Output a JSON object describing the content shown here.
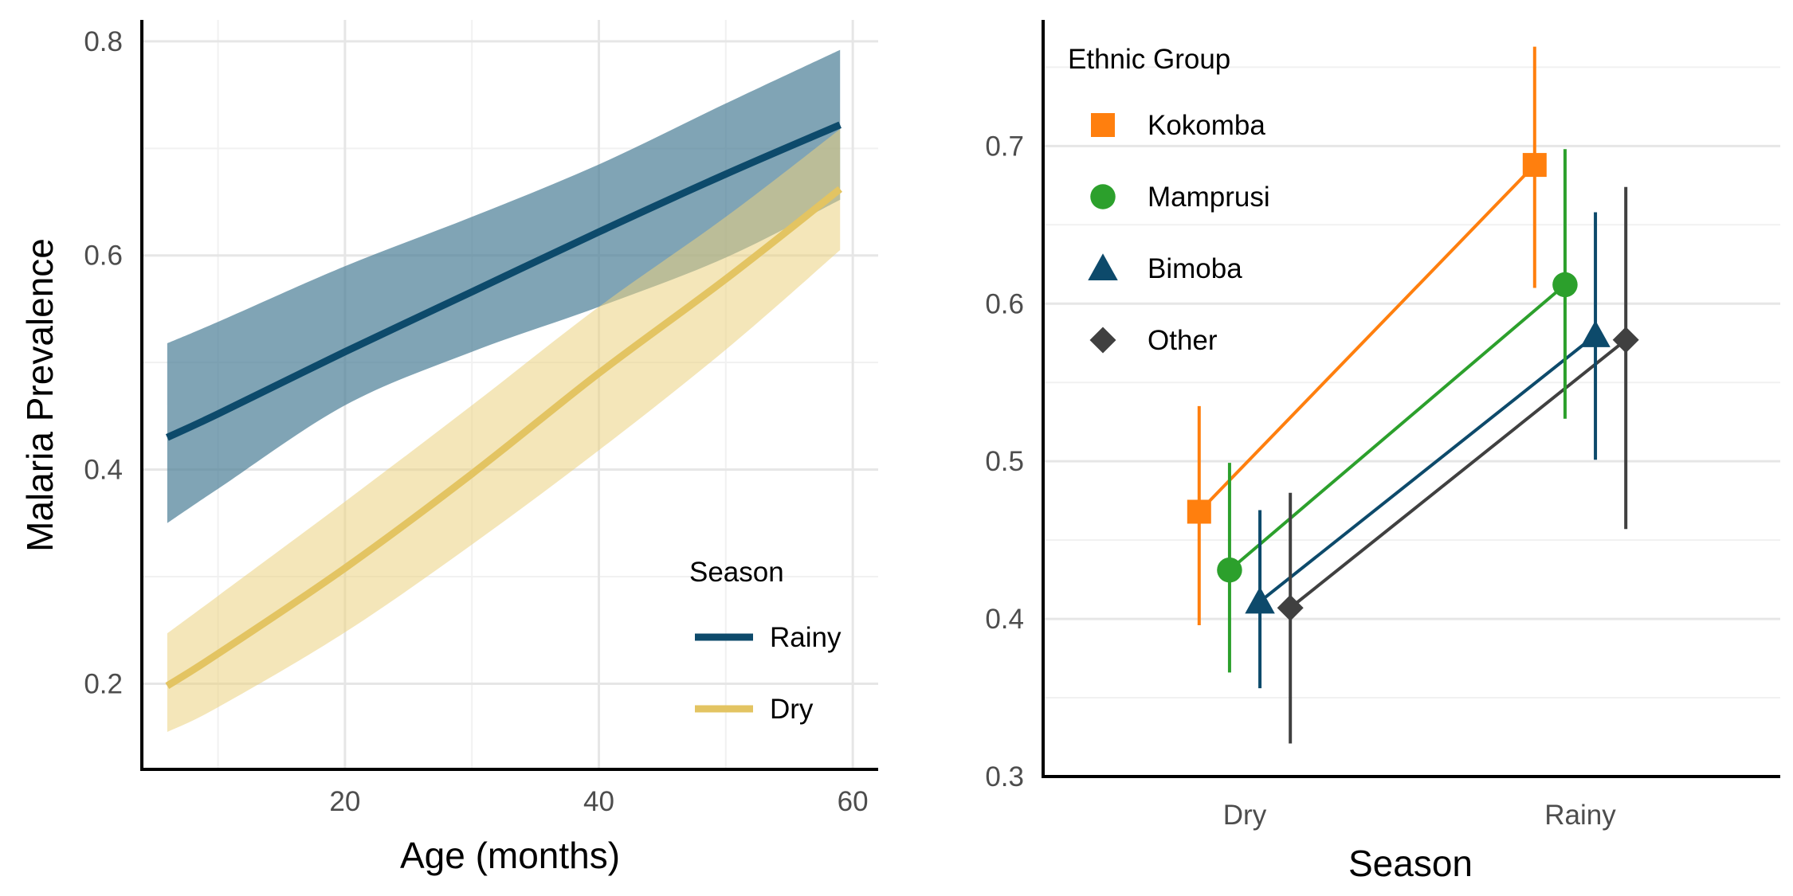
{
  "chart_data": [
    {
      "type": "line",
      "xlabel": "Age (months)",
      "ylabel": "Malaria Prevalence",
      "xlim": [
        4,
        62
      ],
      "ylim": [
        0.12,
        0.82
      ],
      "x_ticks": [
        20,
        40,
        60
      ],
      "y_ticks": [
        0.2,
        0.4,
        0.6,
        0.8
      ],
      "grid": true,
      "legend": {
        "title": "Season",
        "position": "bottom-right"
      },
      "series": [
        {
          "name": "Rainy",
          "color": "#0d4a6b",
          "band_color": "#4a7d96",
          "x": [
            6,
            10,
            20,
            30,
            40,
            50,
            59
          ],
          "y": [
            0.43,
            0.452,
            0.51,
            0.566,
            0.622,
            0.676,
            0.722
          ],
          "lower": [
            0.35,
            0.382,
            0.46,
            0.51,
            0.552,
            0.598,
            0.652
          ],
          "upper": [
            0.518,
            0.538,
            0.59,
            0.636,
            0.685,
            0.742,
            0.792
          ]
        },
        {
          "name": "Dry",
          "color": "#e3c462",
          "band_color": "#ebd27f",
          "x": [
            6,
            10,
            20,
            30,
            40,
            50,
            59
          ],
          "y": [
            0.198,
            0.228,
            0.308,
            0.396,
            0.49,
            0.578,
            0.662
          ],
          "lower": [
            0.155,
            0.178,
            0.248,
            0.33,
            0.418,
            0.512,
            0.605
          ],
          "upper": [
            0.247,
            0.282,
            0.37,
            0.46,
            0.552,
            0.636,
            0.718
          ]
        }
      ]
    },
    {
      "type": "scatter",
      "xlabel": "Season",
      "ylabel": "",
      "categories": [
        "Dry",
        "Rainy"
      ],
      "ylim": [
        0.3,
        0.78
      ],
      "y_ticks": [
        0.3,
        0.4,
        0.5,
        0.6,
        0.7
      ],
      "y_tick_labels": [
        "0.3",
        "0.4",
        "0.5",
        "0.6",
        "0.7"
      ],
      "grid": true,
      "legend": {
        "title": "Ethnic Group",
        "position": "top-left"
      },
      "series": [
        {
          "name": "Kokomba",
          "shape": "square",
          "color": "#ff7f0e",
          "values": [
            0.468,
            0.688
          ],
          "lower": [
            0.396,
            0.61
          ],
          "upper": [
            0.535,
            0.763
          ],
          "offset": -0.15
        },
        {
          "name": "Mamprusi",
          "shape": "circle",
          "color": "#2ca02c",
          "values": [
            0.431,
            0.612
          ],
          "lower": [
            0.366,
            0.527
          ],
          "upper": [
            0.499,
            0.698
          ],
          "offset": -0.05
        },
        {
          "name": "Bimoba",
          "shape": "triangle",
          "color": "#0d4a6b",
          "values": [
            0.411,
            0.58
          ],
          "lower": [
            0.356,
            0.501
          ],
          "upper": [
            0.469,
            0.658
          ],
          "offset": 0.05
        },
        {
          "name": "Other",
          "shape": "diamond",
          "color": "#404040",
          "values": [
            0.407,
            0.577
          ],
          "lower": [
            0.321,
            0.457
          ],
          "upper": [
            0.48,
            0.674
          ],
          "offset": 0.15
        }
      ]
    }
  ]
}
